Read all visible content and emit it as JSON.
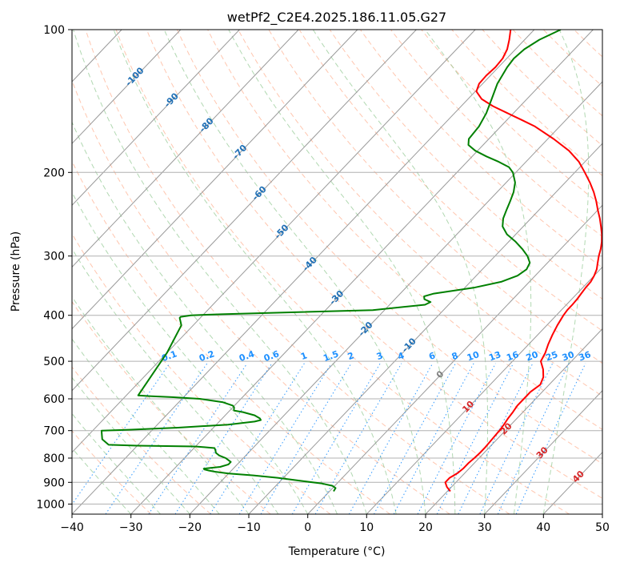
{
  "chart_data": {
    "type": "skew-t log-p",
    "title": "wetPf2_C2E4.2025.186.11.05.G27",
    "xlabel": "Temperature (°C)",
    "ylabel": "Pressure (hPa)",
    "xlim": [
      -40,
      50
    ],
    "ylim": [
      1050,
      100
    ],
    "y_scale": "log",
    "x_ticks": [
      -40,
      -30,
      -20,
      -10,
      0,
      10,
      20,
      30,
      40,
      50
    ],
    "x_tick_labels": [
      "−40",
      "−30",
      "−20",
      "−10",
      "0",
      "10",
      "20",
      "30",
      "40",
      "50"
    ],
    "y_ticks": [
      100,
      200,
      300,
      400,
      500,
      600,
      700,
      800,
      900,
      1000
    ],
    "y_tick_labels": [
      "100",
      "200",
      "300",
      "400",
      "500",
      "600",
      "700",
      "800",
      "900",
      "1000"
    ],
    "grid": true,
    "colors": {
      "temperature": "#ff0000",
      "dewpoint": "#008000",
      "isotherm": "#999999",
      "dry_adiabat": "#ffa07a",
      "moist_adiabat": "#90c890",
      "mixing_ratio": "#1e90ff",
      "label_blue": "#1f6fb5",
      "label_red": "#d62728"
    },
    "isotherm_labels": [
      "-100",
      "-90",
      "-80",
      "-70",
      "-60",
      "-50",
      "-40",
      "-30",
      "-20",
      "-10",
      "0",
      "10",
      "20",
      "30",
      "40"
    ],
    "mixing_ratio_labels": [
      "0.1",
      "0.2",
      "0.4",
      "0.6",
      "1",
      "1.5",
      "2",
      "3",
      "4",
      "6",
      "8",
      "10",
      "13",
      "16",
      "20",
      "25",
      "30",
      "36"
    ],
    "mixing_ratio_values": [
      0.1,
      0.2,
      0.4,
      0.6,
      1,
      1.5,
      2,
      3,
      4,
      6,
      8,
      10,
      13,
      16,
      20,
      25,
      30,
      36
    ],
    "series": [
      {
        "variable": "temperature",
        "pressure": [
          940,
          920,
          900,
          880,
          860,
          840,
          820,
          800,
          780,
          760,
          740,
          720,
          700,
          680,
          660,
          640,
          620,
          600,
          580,
          560,
          540,
          520,
          500,
          480,
          460,
          440,
          420,
          400,
          390,
          380,
          370,
          360,
          350,
          340,
          330,
          320,
          310,
          300,
          290,
          280,
          270,
          260,
          250,
          240,
          230,
          220,
          210,
          200,
          190,
          180,
          170,
          160,
          155,
          150,
          145,
          140,
          135,
          130,
          125,
          120,
          115,
          110,
          105,
          100
        ],
        "values": [
          20.5,
          19.2,
          18.2,
          18.2,
          18.8,
          19.0,
          19.0,
          19.2,
          19.3,
          19.3,
          19.2,
          19.1,
          19.0,
          18.8,
          18.5,
          18.3,
          18.0,
          18.0,
          18.0,
          18.5,
          17.8,
          16.5,
          14.8,
          14.2,
          13.3,
          12.5,
          11.8,
          11.2,
          11.0,
          11.0,
          10.9,
          10.7,
          10.5,
          10.4,
          10.0,
          9.4,
          8.5,
          7.6,
          6.8,
          5.8,
          4.6,
          3.2,
          1.7,
          0.0,
          -1.7,
          -3.6,
          -5.8,
          -8.3,
          -11.0,
          -14.5,
          -19.0,
          -24.2,
          -27.5,
          -31.0,
          -34.6,
          -37.7,
          -39.8,
          -40.6,
          -40.7,
          -40.5,
          -40.7,
          -41.4,
          -42.6,
          -44.0
        ]
      },
      {
        "variable": "dewpoint",
        "pressure": [
          940,
          925,
          915,
          905,
          895,
          880,
          870,
          862,
          855,
          850,
          845,
          842,
          840,
          835,
          825,
          815,
          805,
          800,
          790,
          780,
          770,
          762,
          756,
          753,
          750,
          730,
          710,
          700,
          697,
          690,
          680,
          670,
          665,
          660,
          650,
          640,
          635,
          625,
          620,
          610,
          600,
          595,
          592,
          590,
          480,
          420,
          410,
          405,
          403,
          400,
          398,
          390,
          380,
          375,
          370,
          365,
          360,
          350,
          340,
          330,
          320,
          310,
          300,
          290,
          280,
          270,
          260,
          250,
          240,
          230,
          220,
          210,
          200,
          195,
          190,
          185,
          180,
          175,
          170,
          160,
          150,
          140,
          130,
          120,
          115,
          110,
          105,
          100
        ],
        "values": [
          0.7,
          0.5,
          -0.4,
          -2.5,
          -6.0,
          -11.0,
          -15.5,
          -20.0,
          -22.5,
          -23.8,
          -24.8,
          -25.0,
          -24.4,
          -22.5,
          -21.5,
          -21.5,
          -22.5,
          -23.0,
          -24.5,
          -25.5,
          -26.0,
          -26.5,
          -30.0,
          -40.0,
          -45.0,
          -47.0,
          -48.0,
          -48.5,
          -44.0,
          -36.0,
          -28.0,
          -24.0,
          -23.2,
          -23.6,
          -25.0,
          -27.5,
          -29.3,
          -29.8,
          -30.3,
          -32.5,
          -37.0,
          -42.0,
          -46.0,
          -48.0,
          -50.0,
          -52.0,
          -53.0,
          -53.5,
          -53.5,
          -52.0,
          -47.0,
          -22.0,
          -14.0,
          -13.5,
          -15.0,
          -15.5,
          -14.3,
          -8.5,
          -4.8,
          -3.0,
          -2.5,
          -3.0,
          -4.5,
          -6.5,
          -8.8,
          -11.5,
          -13.5,
          -14.7,
          -15.5,
          -16.3,
          -17.2,
          -18.5,
          -20.5,
          -22.0,
          -24.6,
          -27.6,
          -30.4,
          -32.5,
          -33.4,
          -33.7,
          -34.6,
          -36.0,
          -37.5,
          -38.5,
          -38.8,
          -38.5,
          -37.5,
          -35.5
        ]
      }
    ]
  }
}
